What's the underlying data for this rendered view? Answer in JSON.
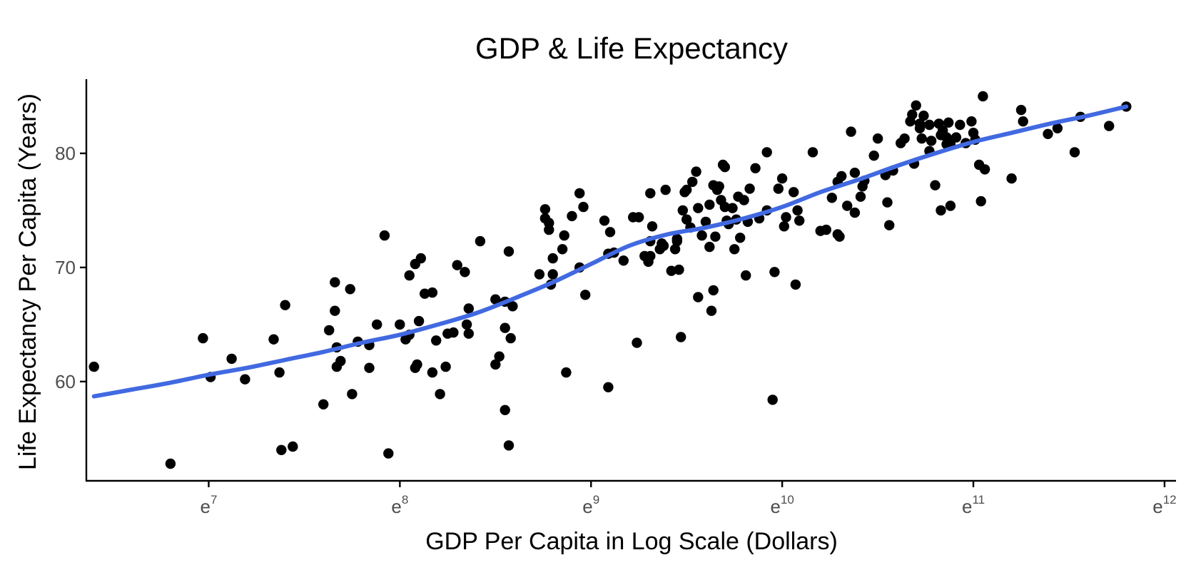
{
  "chart_data": {
    "type": "scatter",
    "title": "GDP & Life Expectancy",
    "xlabel": "GDP Per Capita in Log Scale (Dollars)",
    "ylabel": "Life Expectancy Per Capita (Years)",
    "x_scale": "log (natural)",
    "x_ticks": [
      {
        "value": 7,
        "base": "e",
        "exp": "7"
      },
      {
        "value": 8,
        "base": "e",
        "exp": "8"
      },
      {
        "value": 9,
        "base": "e",
        "exp": "9"
      },
      {
        "value": 10,
        "base": "e",
        "exp": "10"
      },
      {
        "value": 11,
        "base": "e",
        "exp": "11"
      },
      {
        "value": 12,
        "base": "e",
        "exp": "12"
      }
    ],
    "y_ticks": [
      {
        "value": 60,
        "label": "60"
      },
      {
        "value": 70,
        "label": "70"
      },
      {
        "value": 80,
        "label": "80"
      }
    ],
    "xlim": [
      6.36,
      12.06
    ],
    "ylim": [
      51.3,
      86.5
    ],
    "grid": false,
    "legend": "none",
    "point_color": "#000000",
    "trend_color": "#4169e1",
    "points": [
      [
        6.4,
        61.3
      ],
      [
        6.8,
        52.8
      ],
      [
        6.97,
        63.8
      ],
      [
        7.01,
        60.4
      ],
      [
        7.12,
        62.0
      ],
      [
        7.19,
        60.2
      ],
      [
        7.34,
        63.7
      ],
      [
        7.37,
        60.8
      ],
      [
        7.38,
        54.0
      ],
      [
        7.4,
        66.7
      ],
      [
        7.44,
        54.3
      ],
      [
        7.6,
        58.0
      ],
      [
        7.63,
        64.5
      ],
      [
        7.66,
        68.7
      ],
      [
        7.66,
        66.2
      ],
      [
        7.67,
        63.0
      ],
      [
        7.67,
        61.3
      ],
      [
        7.69,
        61.8
      ],
      [
        7.74,
        68.1
      ],
      [
        7.75,
        58.9
      ],
      [
        7.78,
        63.5
      ],
      [
        7.84,
        61.2
      ],
      [
        7.84,
        63.2
      ],
      [
        7.88,
        65.0
      ],
      [
        7.92,
        72.8
      ],
      [
        7.94,
        53.7
      ],
      [
        8.0,
        65.0
      ],
      [
        8.03,
        63.7
      ],
      [
        8.05,
        64.1
      ],
      [
        8.05,
        69.3
      ],
      [
        8.08,
        70.3
      ],
      [
        8.08,
        61.2
      ],
      [
        8.09,
        61.5
      ],
      [
        8.1,
        65.3
      ],
      [
        8.11,
        70.8
      ],
      [
        8.13,
        67.7
      ],
      [
        8.17,
        67.8
      ],
      [
        8.17,
        60.8
      ],
      [
        8.19,
        63.6
      ],
      [
        8.21,
        58.9
      ],
      [
        8.24,
        61.3
      ],
      [
        8.25,
        64.2
      ],
      [
        8.28,
        64.3
      ],
      [
        8.3,
        70.2
      ],
      [
        8.34,
        69.6
      ],
      [
        8.35,
        65.0
      ],
      [
        8.36,
        64.2
      ],
      [
        8.36,
        66.4
      ],
      [
        8.42,
        72.3
      ],
      [
        8.5,
        67.2
      ],
      [
        8.5,
        61.5
      ],
      [
        8.52,
        62.2
      ],
      [
        8.55,
        57.5
      ],
      [
        8.55,
        64.7
      ],
      [
        8.55,
        67.0
      ],
      [
        8.57,
        71.4
      ],
      [
        8.57,
        54.4
      ],
      [
        8.58,
        63.8
      ],
      [
        8.59,
        66.6
      ],
      [
        8.73,
        69.4
      ],
      [
        8.76,
        75.1
      ],
      [
        8.76,
        74.3
      ],
      [
        8.78,
        73.3
      ],
      [
        8.78,
        73.9
      ],
      [
        8.79,
        68.5
      ],
      [
        8.8,
        70.8
      ],
      [
        8.8,
        69.4
      ],
      [
        8.85,
        71.6
      ],
      [
        8.86,
        72.8
      ],
      [
        8.87,
        60.8
      ],
      [
        8.9,
        74.5
      ],
      [
        8.94,
        70.0
      ],
      [
        8.94,
        76.5
      ],
      [
        8.96,
        75.3
      ],
      [
        8.97,
        67.6
      ],
      [
        9.07,
        74.1
      ],
      [
        9.09,
        59.5
      ],
      [
        9.09,
        71.2
      ],
      [
        9.1,
        73.1
      ],
      [
        9.12,
        71.3
      ],
      [
        9.17,
        70.6
      ],
      [
        9.22,
        74.4
      ],
      [
        9.24,
        63.4
      ],
      [
        9.25,
        74.4
      ],
      [
        9.28,
        71.0
      ],
      [
        9.3,
        70.5
      ],
      [
        9.31,
        71.0
      ],
      [
        9.31,
        76.5
      ],
      [
        9.31,
        72.3
      ],
      [
        9.32,
        73.6
      ],
      [
        9.36,
        71.6
      ],
      [
        9.37,
        72.1
      ],
      [
        9.38,
        71.9
      ],
      [
        9.39,
        76.8
      ],
      [
        9.42,
        69.7
      ],
      [
        9.44,
        71.6
      ],
      [
        9.45,
        72.3
      ],
      [
        9.45,
        72.5
      ],
      [
        9.46,
        69.8
      ],
      [
        9.47,
        63.9
      ],
      [
        9.48,
        75.0
      ],
      [
        9.49,
        76.6
      ],
      [
        9.5,
        74.2
      ],
      [
        9.5,
        76.8
      ],
      [
        9.52,
        73.5
      ],
      [
        9.53,
        77.5
      ],
      [
        9.55,
        78.4
      ],
      [
        9.56,
        75.2
      ],
      [
        9.56,
        67.4
      ],
      [
        9.58,
        72.8
      ],
      [
        9.6,
        74.0
      ],
      [
        9.62,
        75.5
      ],
      [
        9.62,
        71.8
      ],
      [
        9.63,
        66.2
      ],
      [
        9.64,
        77.2
      ],
      [
        9.64,
        68.0
      ],
      [
        9.65,
        72.7
      ],
      [
        9.66,
        76.8
      ],
      [
        9.67,
        77.1
      ],
      [
        9.68,
        75.9
      ],
      [
        9.69,
        79.0
      ],
      [
        9.7,
        78.8
      ],
      [
        9.7,
        75.3
      ],
      [
        9.71,
        74.1
      ],
      [
        9.72,
        73.8
      ],
      [
        9.74,
        75.2
      ],
      [
        9.75,
        71.6
      ],
      [
        9.76,
        74.2
      ],
      [
        9.77,
        76.2
      ],
      [
        9.78,
        72.6
      ],
      [
        9.8,
        75.9
      ],
      [
        9.81,
        69.3
      ],
      [
        9.82,
        74.0
      ],
      [
        9.83,
        76.9
      ],
      [
        9.86,
        78.7
      ],
      [
        9.88,
        74.3
      ],
      [
        9.92,
        75.0
      ],
      [
        9.92,
        80.1
      ],
      [
        9.95,
        58.4
      ],
      [
        9.96,
        69.6
      ],
      [
        9.98,
        76.9
      ],
      [
        10.0,
        77.8
      ],
      [
        10.01,
        73.6
      ],
      [
        10.02,
        74.4
      ],
      [
        10.06,
        76.6
      ],
      [
        10.07,
        68.5
      ],
      [
        10.08,
        75.0
      ],
      [
        10.09,
        74.1
      ],
      [
        10.16,
        80.1
      ],
      [
        10.2,
        73.2
      ],
      [
        10.23,
        73.3
      ],
      [
        10.26,
        76.1
      ],
      [
        10.29,
        77.5
      ],
      [
        10.29,
        72.9
      ],
      [
        10.3,
        72.7
      ],
      [
        10.31,
        78.0
      ],
      [
        10.34,
        75.4
      ],
      [
        10.36,
        81.9
      ],
      [
        10.38,
        74.8
      ],
      [
        10.38,
        78.3
      ],
      [
        10.41,
        76.2
      ],
      [
        10.42,
        77.1
      ],
      [
        10.43,
        77.6
      ],
      [
        10.48,
        79.8
      ],
      [
        10.5,
        81.3
      ],
      [
        10.54,
        78.1
      ],
      [
        10.55,
        75.7
      ],
      [
        10.56,
        73.7
      ],
      [
        10.58,
        78.5
      ],
      [
        10.62,
        80.9
      ],
      [
        10.64,
        81.3
      ],
      [
        10.67,
        82.8
      ],
      [
        10.68,
        83.4
      ],
      [
        10.69,
        79.1
      ],
      [
        10.7,
        84.2
      ],
      [
        10.72,
        82.6
      ],
      [
        10.72,
        82.2
      ],
      [
        10.73,
        81.3
      ],
      [
        10.74,
        83.3
      ],
      [
        10.77,
        82.5
      ],
      [
        10.77,
        80.2
      ],
      [
        10.78,
        81.1
      ],
      [
        10.8,
        77.2
      ],
      [
        10.82,
        82.6
      ],
      [
        10.83,
        81.6
      ],
      [
        10.83,
        75.0
      ],
      [
        10.84,
        82.0
      ],
      [
        10.86,
        80.8
      ],
      [
        10.86,
        81.4
      ],
      [
        10.87,
        82.7
      ],
      [
        10.88,
        75.4
      ],
      [
        10.88,
        80.8
      ],
      [
        10.91,
        81.4
      ],
      [
        10.93,
        82.5
      ],
      [
        10.96,
        80.9
      ],
      [
        10.99,
        82.8
      ],
      [
        11.0,
        81.8
      ],
      [
        11.01,
        81.2
      ],
      [
        11.03,
        79.0
      ],
      [
        11.04,
        75.8
      ],
      [
        11.05,
        85.0
      ],
      [
        11.06,
        78.6
      ],
      [
        11.2,
        77.8
      ],
      [
        11.25,
        83.8
      ],
      [
        11.26,
        82.8
      ],
      [
        11.39,
        81.7
      ],
      [
        11.44,
        82.2
      ],
      [
        11.53,
        80.1
      ],
      [
        11.56,
        83.2
      ],
      [
        11.71,
        82.4
      ],
      [
        11.8,
        84.1
      ]
    ],
    "trend": [
      [
        6.4,
        58.7
      ],
      [
        6.6,
        59.3
      ],
      [
        6.8,
        59.9
      ],
      [
        7.0,
        60.6
      ],
      [
        7.2,
        61.2
      ],
      [
        7.4,
        61.9
      ],
      [
        7.6,
        62.6
      ],
      [
        7.8,
        63.4
      ],
      [
        8.0,
        64.1
      ],
      [
        8.2,
        65.0
      ],
      [
        8.4,
        66.0
      ],
      [
        8.6,
        67.3
      ],
      [
        8.8,
        68.7
      ],
      [
        9.0,
        70.3
      ],
      [
        9.2,
        71.9
      ],
      [
        9.4,
        72.9
      ],
      [
        9.6,
        73.5
      ],
      [
        9.8,
        74.3
      ],
      [
        10.0,
        75.3
      ],
      [
        10.2,
        76.6
      ],
      [
        10.4,
        77.7
      ],
      [
        10.6,
        78.9
      ],
      [
        10.8,
        80.0
      ],
      [
        11.0,
        81.0
      ],
      [
        11.2,
        81.8
      ],
      [
        11.4,
        82.6
      ],
      [
        11.6,
        83.3
      ],
      [
        11.8,
        84.1
      ]
    ]
  }
}
